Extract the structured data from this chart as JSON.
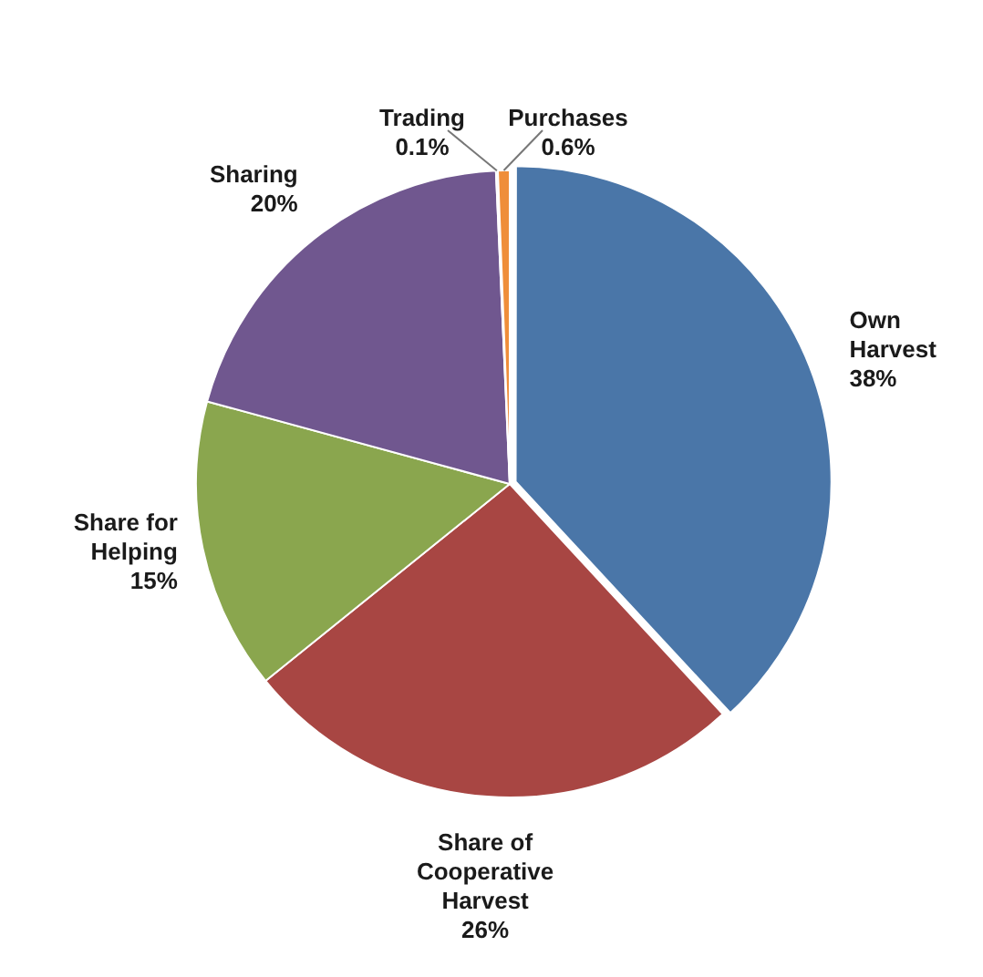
{
  "chart_data": {
    "type": "pie",
    "categories": [
      "Own Harvest",
      "Share of Cooperative Harvest",
      "Share for Helping",
      "Sharing",
      "Trading",
      "Purchases"
    ],
    "values": [
      38,
      26,
      15,
      20,
      0.1,
      0.6
    ],
    "value_labels": [
      "38%",
      "26%",
      "15%",
      "20%",
      "0.1%",
      "0.6%"
    ],
    "colors": [
      "#4a76a8",
      "#a84643",
      "#8aa64e",
      "#70578f",
      "#46a6c2",
      "#ef8e3a"
    ],
    "legend": false
  }
}
